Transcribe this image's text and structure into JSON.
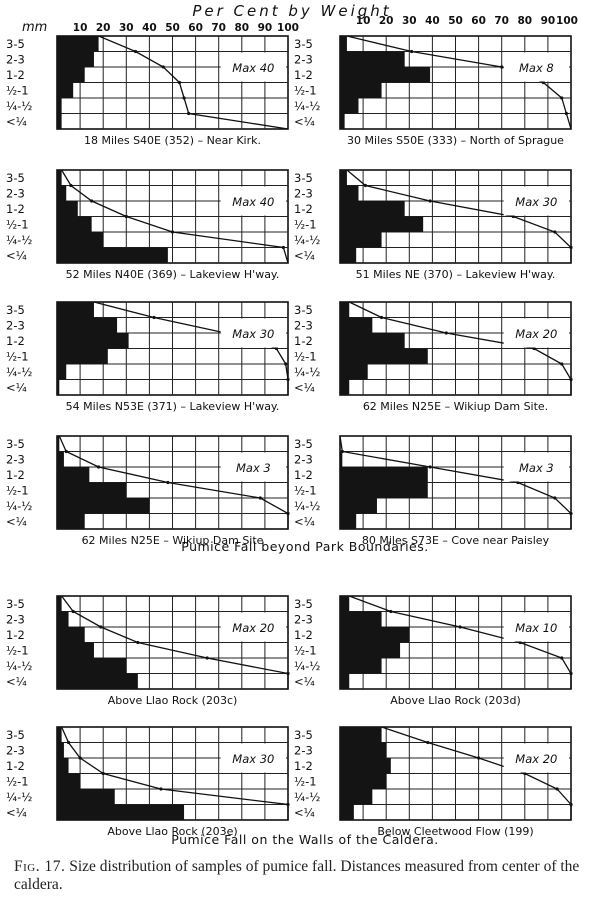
{
  "figure": {
    "top_axis_title": "Per Cent by Weight",
    "mm_label": "mm",
    "x_ticks": [
      "10",
      "20",
      "30",
      "40",
      "50",
      "60",
      "70",
      "80",
      "90",
      "100"
    ],
    "right_x_ticks": [
      "10",
      "20",
      "30",
      "40",
      "50",
      "60",
      "70",
      "80",
      "90",
      "100"
    ],
    "size_classes": [
      "3-5",
      "2-3",
      "1-2",
      "½-1",
      "¼-½",
      "<¼"
    ],
    "group_titles": [
      "Pumice Fall beyond Park Boundaries.",
      "Pumice Fall on the Walls of the Caldera."
    ],
    "caption_label": "Fig. 17.",
    "caption_text": "Size distribution of samples of pumice fall. Distances measured from center of the caldera."
  },
  "chart_data": [
    {
      "type": "bar",
      "label": "18 Miles S40E (352) – Near Kirk.",
      "max_label": "Max 40",
      "categories": [
        "3-5",
        "2-3",
        "1-2",
        "½-1",
        "¼-½",
        "<¼"
      ],
      "values": [
        18,
        16,
        12,
        7,
        2,
        2
      ],
      "cumulative": [
        18,
        34,
        46,
        53,
        55,
        57,
        100
      ],
      "xlim": [
        0,
        100
      ]
    },
    {
      "type": "bar",
      "label": "30 Miles S50E (333) – North of Sprague",
      "max_label": "Max 8",
      "categories": [
        "3-5",
        "2-3",
        "1-2",
        "½-1",
        "¼-½",
        "<¼"
      ],
      "values": [
        3,
        28,
        39,
        18,
        8,
        2
      ],
      "cumulative": [
        3,
        31,
        70,
        88,
        96,
        98,
        100
      ],
      "xlim": [
        0,
        100
      ]
    },
    {
      "type": "bar",
      "label": "52 Miles N40E (369) – Lakeview H'way.",
      "max_label": "Max 40",
      "categories": [
        "3-5",
        "2-3",
        "1-2",
        "½-1",
        "¼-½",
        "<¼"
      ],
      "values": [
        2,
        4,
        9,
        15,
        20,
        48
      ],
      "cumulative": [
        2,
        6,
        15,
        30,
        50,
        98,
        100
      ],
      "xlim": [
        0,
        100
      ]
    },
    {
      "type": "bar",
      "label": "51 Miles NE (370) – Lakeview H'way.",
      "max_label": "Max 30",
      "categories": [
        "3-5",
        "2-3",
        "1-2",
        "½-1",
        "¼-½",
        "<¼"
      ],
      "values": [
        3,
        8,
        28,
        36,
        18,
        7
      ],
      "cumulative": [
        3,
        11,
        39,
        75,
        93,
        100,
        100
      ],
      "xlim": [
        0,
        100
      ]
    },
    {
      "type": "bar",
      "label": "54 Miles N53E (371) – Lakeview H'way.",
      "max_label": "Max 30",
      "categories": [
        "3-5",
        "2-3",
        "1-2",
        "½-1",
        "¼-½",
        "<¼"
      ],
      "values": [
        16,
        26,
        31,
        22,
        4,
        1
      ],
      "cumulative": [
        16,
        42,
        73,
        95,
        99,
        100,
        100
      ],
      "xlim": [
        0,
        100
      ]
    },
    {
      "type": "bar",
      "label": "62 Miles N25E – Wikiup Dam Site.",
      "max_label": "Max 20",
      "categories": [
        "3-5",
        "2-3",
        "1-2",
        "½-1",
        "¼-½",
        "<¼"
      ],
      "values": [
        4,
        14,
        28,
        38,
        12,
        4
      ],
      "cumulative": [
        4,
        18,
        46,
        84,
        96,
        100,
        100
      ],
      "xlim": [
        0,
        100
      ]
    },
    {
      "type": "bar",
      "label": "62 Miles N25E – Wikiup Dam Site",
      "max_label": "Max 3",
      "categories": [
        "3-5",
        "2-3",
        "1-2",
        "½-1",
        "¼-½",
        "<¼"
      ],
      "values": [
        1,
        3,
        14,
        30,
        40,
        12
      ],
      "cumulative": [
        1,
        4,
        18,
        48,
        88,
        100,
        100
      ],
      "xlim": [
        0,
        100
      ]
    },
    {
      "type": "bar",
      "label": "80 Miles S73E – Cove near Paisley",
      "max_label": "Max 3",
      "categories": [
        "3-5",
        "2-3",
        "1-2",
        "½-1",
        "¼-½",
        "<¼"
      ],
      "values": [
        0,
        1,
        38,
        38,
        16,
        7
      ],
      "cumulative": [
        0,
        1,
        39,
        77,
        93,
        100,
        100
      ],
      "xlim": [
        0,
        100
      ]
    },
    {
      "type": "bar",
      "label": "Above Llao Rock (203c)",
      "max_label": "Max 20",
      "categories": [
        "3-5",
        "2-3",
        "1-2",
        "½-1",
        "¼-½",
        "<¼"
      ],
      "values": [
        2,
        5,
        12,
        16,
        30,
        35
      ],
      "cumulative": [
        2,
        7,
        19,
        35,
        65,
        100,
        100
      ],
      "xlim": [
        0,
        100
      ]
    },
    {
      "type": "bar",
      "label": "Above Llao Rock (203d)",
      "max_label": "Max 10",
      "categories": [
        "3-5",
        "2-3",
        "1-2",
        "½-1",
        "¼-½",
        "<¼"
      ],
      "values": [
        4,
        18,
        30,
        26,
        18,
        4
      ],
      "cumulative": [
        4,
        22,
        52,
        78,
        96,
        100,
        100
      ],
      "xlim": [
        0,
        100
      ]
    },
    {
      "type": "bar",
      "label": "Above Llao Rock (203e)",
      "max_label": "Max 30",
      "categories": [
        "3-5",
        "2-3",
        "1-2",
        "½-1",
        "¼-½",
        "<¼"
      ],
      "values": [
        2,
        3,
        5,
        10,
        25,
        55
      ],
      "cumulative": [
        2,
        5,
        10,
        20,
        45,
        100,
        100
      ],
      "xlim": [
        0,
        100
      ]
    },
    {
      "type": "bar",
      "label": "Below Cleetwood Flow (199)",
      "max_label": "Max 20",
      "categories": [
        "3-5",
        "2-3",
        "1-2",
        "½-1",
        "¼-½",
        "<¼"
      ],
      "values": [
        18,
        20,
        22,
        20,
        14,
        6
      ],
      "cumulative": [
        18,
        38,
        60,
        80,
        94,
        100,
        100
      ],
      "xlim": [
        0,
        100
      ]
    }
  ]
}
